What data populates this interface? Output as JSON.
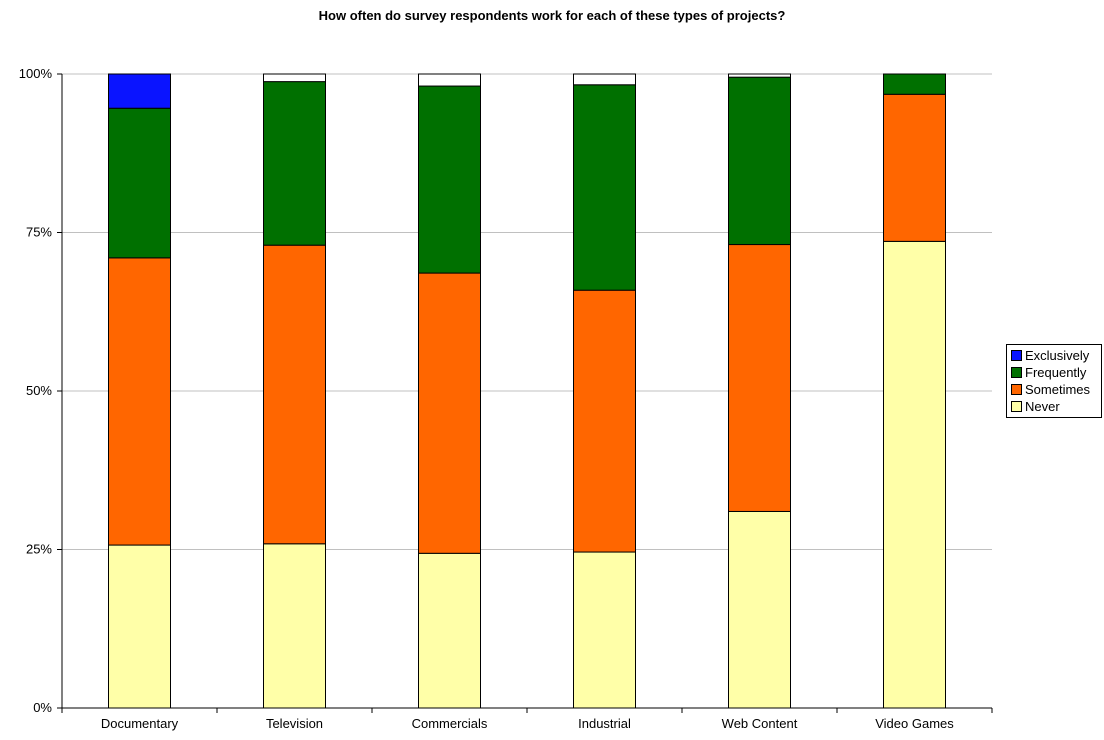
{
  "chart_data": {
    "type": "bar",
    "stacked": true,
    "title": "How often do survey respondents work for each of these types of projects?",
    "categories": [
      "Documentary",
      "Television",
      "Commercials",
      "Industrial",
      "Web Content",
      "Video Games"
    ],
    "series": [
      {
        "name": "Never",
        "color": "#FFFFA8",
        "values": [
          25.7,
          25.9,
          24.4,
          24.6,
          31.0,
          73.6
        ]
      },
      {
        "name": "Sometimes",
        "color": "#FF6600",
        "values": [
          45.3,
          47.1,
          44.2,
          41.3,
          42.1,
          23.2
        ]
      },
      {
        "name": "Frequently",
        "color": "#007000",
        "values": [
          23.6,
          25.8,
          29.5,
          32.4,
          26.4,
          3.2
        ]
      },
      {
        "name": "Exclusively",
        "color": "#0A14FF",
        "values": [
          5.4,
          0.0,
          0.0,
          0.0,
          0.0,
          0.0
        ]
      },
      {
        "name": "",
        "color": "#FFFFFF",
        "values": [
          0.0,
          1.2,
          1.9,
          1.7,
          0.5,
          0.0
        ]
      }
    ],
    "ylim": [
      0,
      100
    ],
    "yticks": [
      "0%",
      "25%",
      "50%",
      "75%",
      "100%"
    ],
    "ytick_values": [
      0,
      25,
      50,
      75,
      100
    ],
    "grid": true,
    "legend_position": "right",
    "legend": [
      "Exclusively",
      "Frequently",
      "Sometimes",
      "Never"
    ]
  }
}
